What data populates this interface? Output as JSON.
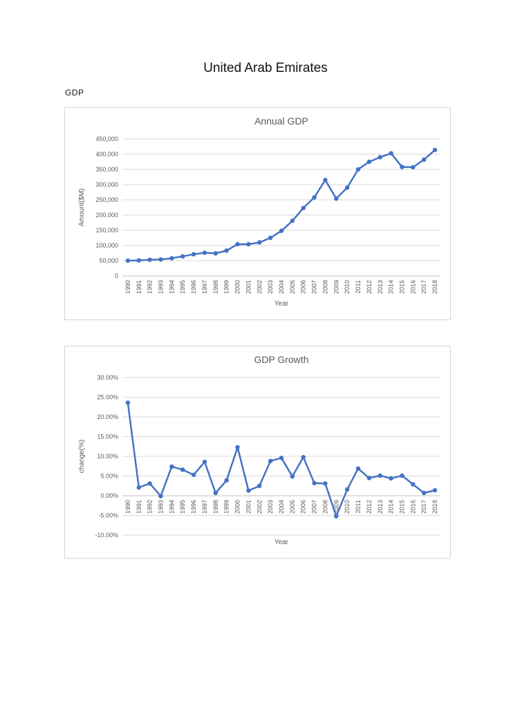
{
  "document": {
    "title": "United Arab Emirates",
    "section_label": "GDP"
  },
  "colors": {
    "series": "#4472c4",
    "grid": "#d9d9d9",
    "text": "#595959"
  },
  "chart_data": [
    {
      "type": "line",
      "title": "Annual GDP",
      "xlabel": "Year",
      "ylabel": "Amount($M)",
      "ylim": [
        0,
        450000
      ],
      "ytick_step": 50000,
      "ytick_labels": [
        "0",
        "50,000",
        "100,000",
        "150,000",
        "200,000",
        "250,000",
        "300,000",
        "350,000",
        "400,000",
        "450,000"
      ],
      "grid": true,
      "legend": "none",
      "x": [
        "1990",
        "1991",
        "1992",
        "1993",
        "1994",
        "1995",
        "1996",
        "1997",
        "1998",
        "1999",
        "2000",
        "2001",
        "2002",
        "2003",
        "2004",
        "2005",
        "2006",
        "2007",
        "2008",
        "2009",
        "2010",
        "2011",
        "2012",
        "2013",
        "2014",
        "2015",
        "2016",
        "2017",
        "2018"
      ],
      "series": [
        {
          "values": [
            50000,
            51000,
            53000,
            54000,
            58000,
            64000,
            71000,
            76000,
            74000,
            83000,
            104000,
            104000,
            110000,
            125000,
            148000,
            181000,
            223000,
            258000,
            315000,
            254000,
            290000,
            350000,
            375000,
            390000,
            403000,
            358000,
            357000,
            382000,
            414000
          ]
        }
      ]
    },
    {
      "type": "line",
      "title": "GDP Growth",
      "xlabel": "Year",
      "ylabel": "change(%)",
      "ylim": [
        -10,
        30
      ],
      "ytick_step": 5,
      "ytick_labels": [
        "-10.00%",
        "-5.00%",
        "0.00%",
        "5.00%",
        "10.00%",
        "15.00%",
        "20.00%",
        "25.00%",
        "30.00%"
      ],
      "grid": true,
      "legend": "none",
      "x": [
        "1990",
        "1991",
        "1992",
        "1993",
        "1994",
        "1995",
        "1996",
        "1997",
        "1998",
        "1999",
        "2000",
        "2001",
        "2002",
        "2003",
        "2004",
        "2005",
        "2006",
        "2007",
        "2008",
        "2009",
        "2010",
        "2011",
        "2012",
        "2013",
        "2014",
        "2015",
        "2016",
        "2017",
        "2018"
      ],
      "series": [
        {
          "values": [
            23.6,
            2.1,
            3.1,
            -0.1,
            7.4,
            6.6,
            5.3,
            8.6,
            0.7,
            3.9,
            12.3,
            1.3,
            2.5,
            8.8,
            9.6,
            4.9,
            9.8,
            3.2,
            3.1,
            -5.2,
            1.6,
            6.9,
            4.5,
            5.1,
            4.4,
            5.1,
            2.9,
            0.7,
            1.4
          ]
        }
      ]
    }
  ]
}
